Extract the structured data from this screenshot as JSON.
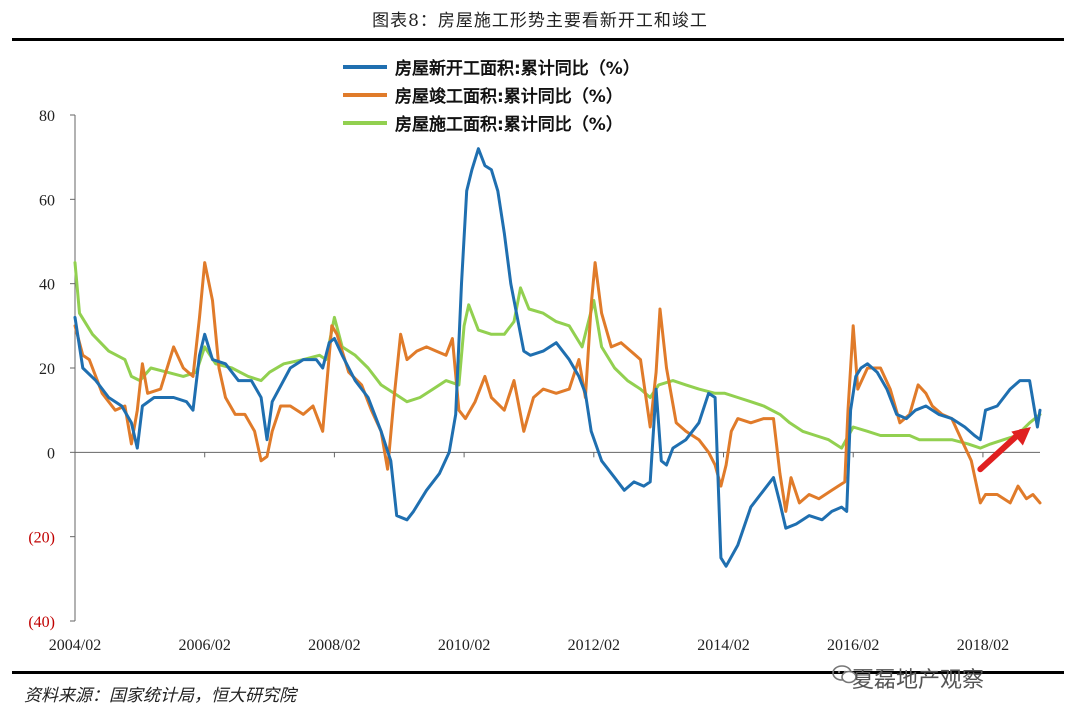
{
  "title": "图表8：房屋施工形势主要看新开工和竣工",
  "source": "资料来源：国家统计局，恒大研究院",
  "watermark": "夏磊地产观察",
  "colors": {
    "new_start": "#1f6fb0",
    "completion": "#e07b2a",
    "construction": "#92d050",
    "negative_tick": "#c00000",
    "arrow": "#e02020"
  },
  "chart_data": {
    "type": "line",
    "ylim": [
      -40,
      80
    ],
    "yticks": [
      80,
      60,
      40,
      20,
      0,
      -20,
      -40
    ],
    "ytick_labels": [
      "80",
      "60",
      "40",
      "20",
      "0",
      "(20)",
      "(40)"
    ],
    "xlim": [
      2004.08,
      2018.96
    ],
    "xticks": [
      2004.08,
      2006.08,
      2008.08,
      2010.08,
      2012.08,
      2014.08,
      2016.08,
      2018.08
    ],
    "xtick_labels": [
      "2004/02",
      "2006/02",
      "2008/02",
      "2010/02",
      "2012/02",
      "2014/02",
      "2016/02",
      "2018/02"
    ],
    "legend_placement": "top",
    "annotation": "red arrow pointing up-right (2018 to 2018-11)",
    "series": [
      {
        "name": "房屋新开工面积:累计同比（%）",
        "color": "#1f6fb0",
        "points": [
          [
            2004.08,
            32
          ],
          [
            2004.2,
            20
          ],
          [
            2004.4,
            17
          ],
          [
            2004.6,
            13
          ],
          [
            2004.8,
            11
          ],
          [
            2004.95,
            7
          ],
          [
            2005.04,
            1
          ],
          [
            2005.12,
            11
          ],
          [
            2005.3,
            13
          ],
          [
            2005.6,
            13
          ],
          [
            2005.8,
            12
          ],
          [
            2005.9,
            10
          ],
          [
            2006.0,
            23
          ],
          [
            2006.08,
            28
          ],
          [
            2006.2,
            22
          ],
          [
            2006.4,
            21
          ],
          [
            2006.6,
            17
          ],
          [
            2006.8,
            17
          ],
          [
            2006.95,
            13
          ],
          [
            2007.04,
            3
          ],
          [
            2007.12,
            12
          ],
          [
            2007.4,
            20
          ],
          [
            2007.6,
            22
          ],
          [
            2007.8,
            22
          ],
          [
            2007.9,
            20
          ],
          [
            2008.0,
            26
          ],
          [
            2008.08,
            27
          ],
          [
            2008.2,
            23
          ],
          [
            2008.4,
            17
          ],
          [
            2008.6,
            13
          ],
          [
            2008.8,
            5
          ],
          [
            2008.95,
            -2
          ],
          [
            2009.04,
            -15
          ],
          [
            2009.2,
            -16
          ],
          [
            2009.3,
            -14
          ],
          [
            2009.5,
            -9
          ],
          [
            2009.7,
            -5
          ],
          [
            2009.85,
            0
          ],
          [
            2009.95,
            9
          ],
          [
            2010.04,
            40
          ],
          [
            2010.12,
            62
          ],
          [
            2010.2,
            67
          ],
          [
            2010.3,
            72
          ],
          [
            2010.4,
            68
          ],
          [
            2010.5,
            67
          ],
          [
            2010.6,
            62
          ],
          [
            2010.7,
            52
          ],
          [
            2010.8,
            40
          ],
          [
            2010.9,
            32
          ],
          [
            2011.0,
            24
          ],
          [
            2011.1,
            23
          ],
          [
            2011.3,
            24
          ],
          [
            2011.5,
            26
          ],
          [
            2011.7,
            22
          ],
          [
            2011.85,
            18
          ],
          [
            2011.95,
            14
          ],
          [
            2012.04,
            5
          ],
          [
            2012.2,
            -2
          ],
          [
            2012.4,
            -6
          ],
          [
            2012.55,
            -9
          ],
          [
            2012.7,
            -7
          ],
          [
            2012.85,
            -8
          ],
          [
            2012.95,
            -7
          ],
          [
            2013.04,
            15
          ],
          [
            2013.12,
            -2
          ],
          [
            2013.2,
            -3
          ],
          [
            2013.3,
            1
          ],
          [
            2013.5,
            3
          ],
          [
            2013.7,
            7
          ],
          [
            2013.85,
            14
          ],
          [
            2013.95,
            13
          ],
          [
            2014.04,
            -25
          ],
          [
            2014.12,
            -27
          ],
          [
            2014.3,
            -22
          ],
          [
            2014.5,
            -13
          ],
          [
            2014.7,
            -9
          ],
          [
            2014.85,
            -6
          ],
          [
            2014.95,
            -12
          ],
          [
            2015.04,
            -18
          ],
          [
            2015.2,
            -17
          ],
          [
            2015.4,
            -15
          ],
          [
            2015.6,
            -16
          ],
          [
            2015.75,
            -14
          ],
          [
            2015.9,
            -13
          ],
          [
            2015.98,
            -14
          ],
          [
            2016.04,
            10
          ],
          [
            2016.12,
            18
          ],
          [
            2016.2,
            20
          ],
          [
            2016.3,
            21
          ],
          [
            2016.45,
            19
          ],
          [
            2016.6,
            15
          ],
          [
            2016.75,
            9
          ],
          [
            2016.9,
            8
          ],
          [
            2017.04,
            10
          ],
          [
            2017.2,
            11
          ],
          [
            2017.4,
            9
          ],
          [
            2017.6,
            8
          ],
          [
            2017.8,
            6
          ],
          [
            2017.95,
            4
          ],
          [
            2018.04,
            3
          ],
          [
            2018.12,
            10
          ],
          [
            2018.3,
            11
          ],
          [
            2018.5,
            15
          ],
          [
            2018.65,
            17
          ],
          [
            2018.8,
            17
          ],
          [
            2018.92,
            6
          ],
          [
            2018.96,
            10
          ]
        ]
      },
      {
        "name": "房屋竣工面积:累计同比（%）",
        "color": "#e07b2a",
        "points": [
          [
            2004.08,
            30
          ],
          [
            2004.2,
            23
          ],
          [
            2004.3,
            22
          ],
          [
            2004.5,
            14
          ],
          [
            2004.7,
            10
          ],
          [
            2004.85,
            11
          ],
          [
            2004.95,
            2
          ],
          [
            2005.04,
            10
          ],
          [
            2005.12,
            21
          ],
          [
            2005.2,
            14
          ],
          [
            2005.4,
            15
          ],
          [
            2005.6,
            25
          ],
          [
            2005.75,
            20
          ],
          [
            2005.9,
            18
          ],
          [
            2006.0,
            32
          ],
          [
            2006.08,
            45
          ],
          [
            2006.2,
            36
          ],
          [
            2006.3,
            20
          ],
          [
            2006.4,
            13
          ],
          [
            2006.55,
            9
          ],
          [
            2006.7,
            9
          ],
          [
            2006.85,
            5
          ],
          [
            2006.95,
            -2
          ],
          [
            2007.04,
            -1
          ],
          [
            2007.12,
            5
          ],
          [
            2007.25,
            11
          ],
          [
            2007.4,
            11
          ],
          [
            2007.6,
            9
          ],
          [
            2007.75,
            11
          ],
          [
            2007.9,
            5
          ],
          [
            2008.04,
            30
          ],
          [
            2008.12,
            28
          ],
          [
            2008.3,
            19
          ],
          [
            2008.5,
            16
          ],
          [
            2008.65,
            10
          ],
          [
            2008.8,
            5
          ],
          [
            2008.9,
            -4
          ],
          [
            2009.0,
            13
          ],
          [
            2009.1,
            28
          ],
          [
            2009.2,
            22
          ],
          [
            2009.35,
            24
          ],
          [
            2009.5,
            25
          ],
          [
            2009.65,
            24
          ],
          [
            2009.8,
            23
          ],
          [
            2009.9,
            27
          ],
          [
            2010.0,
            10
          ],
          [
            2010.1,
            8
          ],
          [
            2010.25,
            12
          ],
          [
            2010.4,
            18
          ],
          [
            2010.5,
            13
          ],
          [
            2010.7,
            10
          ],
          [
            2010.85,
            17
          ],
          [
            2011.0,
            5
          ],
          [
            2011.15,
            13
          ],
          [
            2011.3,
            15
          ],
          [
            2011.5,
            14
          ],
          [
            2011.7,
            15
          ],
          [
            2011.85,
            22
          ],
          [
            2011.95,
            13
          ],
          [
            2012.04,
            35
          ],
          [
            2012.1,
            45
          ],
          [
            2012.2,
            33
          ],
          [
            2012.35,
            25
          ],
          [
            2012.5,
            26
          ],
          [
            2012.65,
            24
          ],
          [
            2012.8,
            22
          ],
          [
            2012.95,
            6
          ],
          [
            2013.04,
            19
          ],
          [
            2013.1,
            34
          ],
          [
            2013.2,
            20
          ],
          [
            2013.35,
            7
          ],
          [
            2013.5,
            5
          ],
          [
            2013.7,
            3
          ],
          [
            2013.85,
            0
          ],
          [
            2013.95,
            -3
          ],
          [
            2014.04,
            -8
          ],
          [
            2014.12,
            -3
          ],
          [
            2014.2,
            5
          ],
          [
            2014.3,
            8
          ],
          [
            2014.5,
            7
          ],
          [
            2014.7,
            8
          ],
          [
            2014.85,
            8
          ],
          [
            2014.95,
            -5
          ],
          [
            2015.04,
            -14
          ],
          [
            2015.12,
            -6
          ],
          [
            2015.25,
            -12
          ],
          [
            2015.4,
            -10
          ],
          [
            2015.55,
            -11
          ],
          [
            2015.75,
            -9
          ],
          [
            2015.95,
            -7
          ],
          [
            2016.0,
            10
          ],
          [
            2016.08,
            30
          ],
          [
            2016.15,
            15
          ],
          [
            2016.3,
            20
          ],
          [
            2016.5,
            20
          ],
          [
            2016.65,
            15
          ],
          [
            2016.8,
            7
          ],
          [
            2016.95,
            9
          ],
          [
            2017.08,
            16
          ],
          [
            2017.2,
            14
          ],
          [
            2017.3,
            11
          ],
          [
            2017.45,
            9
          ],
          [
            2017.6,
            8
          ],
          [
            2017.75,
            3
          ],
          [
            2017.9,
            -2
          ],
          [
            2018.04,
            -12
          ],
          [
            2018.12,
            -10
          ],
          [
            2018.3,
            -10
          ],
          [
            2018.5,
            -12
          ],
          [
            2018.62,
            -8
          ],
          [
            2018.75,
            -11
          ],
          [
            2018.85,
            -10
          ],
          [
            2018.96,
            -12
          ]
        ]
      },
      {
        "name": "房屋施工面积:累计同比（%）",
        "color": "#92d050",
        "points": [
          [
            2004.08,
            45
          ],
          [
            2004.15,
            33
          ],
          [
            2004.35,
            28
          ],
          [
            2004.6,
            24
          ],
          [
            2004.85,
            22
          ],
          [
            2004.95,
            18
          ],
          [
            2005.08,
            17
          ],
          [
            2005.25,
            20
          ],
          [
            2005.5,
            19
          ],
          [
            2005.75,
            18
          ],
          [
            2005.95,
            19
          ],
          [
            2006.08,
            25
          ],
          [
            2006.25,
            21
          ],
          [
            2006.5,
            20
          ],
          [
            2006.75,
            18
          ],
          [
            2006.95,
            17
          ],
          [
            2007.08,
            19
          ],
          [
            2007.3,
            21
          ],
          [
            2007.6,
            22
          ],
          [
            2007.85,
            23
          ],
          [
            2007.95,
            22
          ],
          [
            2008.08,
            32
          ],
          [
            2008.2,
            25
          ],
          [
            2008.4,
            23
          ],
          [
            2008.6,
            20
          ],
          [
            2008.8,
            16
          ],
          [
            2009.0,
            14
          ],
          [
            2009.2,
            12
          ],
          [
            2009.4,
            13
          ],
          [
            2009.6,
            15
          ],
          [
            2009.8,
            17
          ],
          [
            2010.0,
            16
          ],
          [
            2010.08,
            30
          ],
          [
            2010.15,
            35
          ],
          [
            2010.3,
            29
          ],
          [
            2010.5,
            28
          ],
          [
            2010.7,
            28
          ],
          [
            2010.85,
            31
          ],
          [
            2010.95,
            39
          ],
          [
            2011.08,
            34
          ],
          [
            2011.3,
            33
          ],
          [
            2011.5,
            31
          ],
          [
            2011.7,
            30
          ],
          [
            2011.9,
            25
          ],
          [
            2012.08,
            36
          ],
          [
            2012.2,
            25
          ],
          [
            2012.4,
            20
          ],
          [
            2012.6,
            17
          ],
          [
            2012.8,
            15
          ],
          [
            2012.95,
            13
          ],
          [
            2013.08,
            16
          ],
          [
            2013.3,
            17
          ],
          [
            2013.5,
            16
          ],
          [
            2013.7,
            15
          ],
          [
            2013.95,
            14
          ],
          [
            2014.1,
            14
          ],
          [
            2014.3,
            13
          ],
          [
            2014.5,
            12
          ],
          [
            2014.7,
            11
          ],
          [
            2014.95,
            9
          ],
          [
            2015.1,
            7
          ],
          [
            2015.3,
            5
          ],
          [
            2015.5,
            4
          ],
          [
            2015.7,
            3
          ],
          [
            2015.9,
            1
          ],
          [
            2016.08,
            6
          ],
          [
            2016.3,
            5
          ],
          [
            2016.5,
            4
          ],
          [
            2016.7,
            4
          ],
          [
            2016.95,
            4
          ],
          [
            2017.1,
            3
          ],
          [
            2017.35,
            3
          ],
          [
            2017.6,
            3
          ],
          [
            2017.85,
            2
          ],
          [
            2018.04,
            1
          ],
          [
            2018.2,
            2
          ],
          [
            2018.4,
            3
          ],
          [
            2018.6,
            4
          ],
          [
            2018.8,
            7
          ],
          [
            2018.96,
            9
          ]
        ]
      }
    ]
  }
}
